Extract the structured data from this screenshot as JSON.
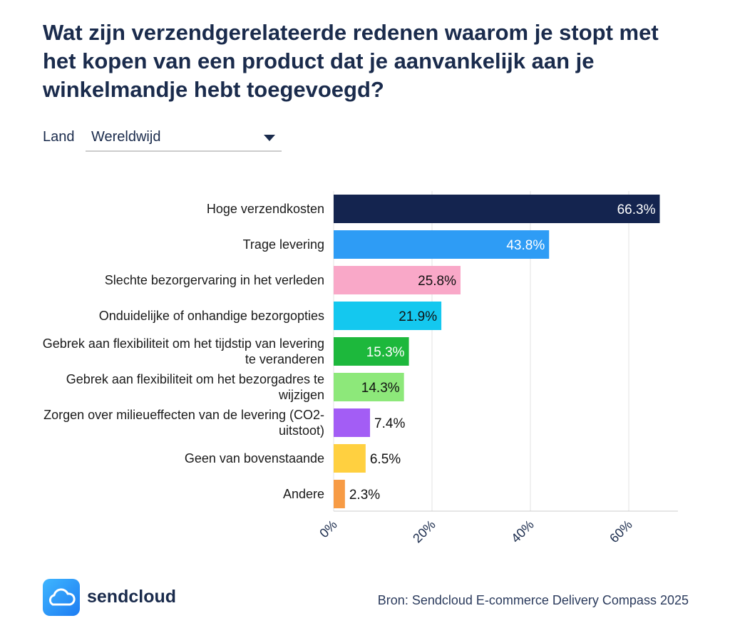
{
  "filter": {
    "label": "Land",
    "value": "Wereldwijd"
  },
  "logo": "sendcloud",
  "chart_data": {
    "type": "hbar",
    "title": "Wat zijn verzendgerelateerde redenen waarom je stopt met het kopen van een product dat je aanvankelijk aan je winkelmandje hebt toegevoegd?",
    "categories": [
      "Hoge verzendkosten",
      "Trage levering",
      "Slechte bezorgervaring in het verleden",
      "Onduidelijke of onhandige bezorgopties",
      "Gebrek aan flexibiliteit om het tijdstip van levering te veranderen",
      "Gebrek aan flexibiliteit om het bezorgadres te wijzigen",
      "Zorgen over milieueffecten van de levering (CO2-uitstoot)",
      "Geen van bovenstaande",
      "Andere"
    ],
    "values": [
      66.3,
      43.8,
      25.8,
      21.9,
      15.3,
      14.3,
      7.4,
      6.5,
      2.3
    ],
    "value_labels": [
      "66.3%",
      "43.8%",
      "25.8%",
      "21.9%",
      "15.3%",
      "14.3%",
      "7.4%",
      "6.5%",
      "2.3%"
    ],
    "colors": [
      "#14244f",
      "#2e9cf5",
      "#f9a8c8",
      "#14c8ef",
      "#1db83c",
      "#8de87a",
      "#a35df5",
      "#ffd040",
      "#f79b45"
    ],
    "xlim": [
      0,
      70
    ],
    "xticks": [
      {
        "value": 0,
        "label": "0%"
      },
      {
        "value": 20,
        "label": "20%"
      },
      {
        "value": 40,
        "label": "40%"
      },
      {
        "value": 60,
        "label": "60%"
      }
    ],
    "grid": true,
    "source": "Bron: Sendcloud E-commerce Delivery Compass 2025"
  }
}
